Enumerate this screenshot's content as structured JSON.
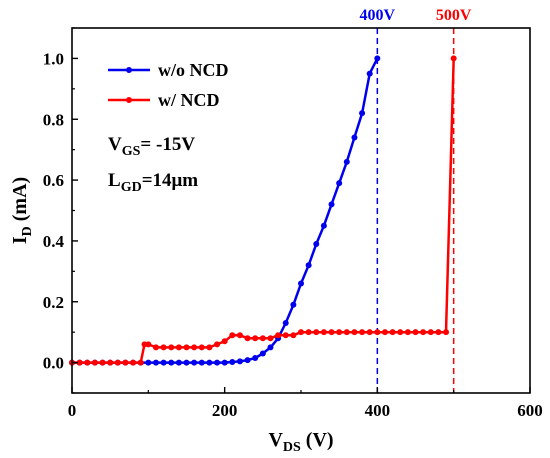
{
  "chart_data": {
    "type": "line",
    "title": "",
    "xlabel": {
      "main": "V",
      "sub": "DS",
      "unit": " (V)"
    },
    "ylabel": {
      "main": "I",
      "sub": "D",
      "unit": " (mA)"
    },
    "xlim": [
      0,
      600
    ],
    "ylim": [
      -0.1,
      1.1
    ],
    "xticks": [
      0,
      200,
      400,
      600
    ],
    "yticks": [
      0.0,
      0.2,
      0.4,
      0.6,
      0.8,
      1.0
    ],
    "ytick_labels": [
      "0.0",
      "0.2",
      "0.4",
      "0.6",
      "0.8",
      "1.0"
    ],
    "grid": false,
    "legend_position": "top-left",
    "series": [
      {
        "name": "w/o NCD",
        "color": "#0000ee",
        "x": [
          0,
          10,
          20,
          30,
          40,
          50,
          60,
          70,
          80,
          90,
          100,
          110,
          120,
          130,
          140,
          150,
          160,
          170,
          180,
          190,
          200,
          210,
          220,
          230,
          240,
          250,
          260,
          270,
          280,
          290,
          300,
          310,
          320,
          330,
          340,
          350,
          360,
          370,
          380,
          390,
          400
        ],
        "y": [
          0,
          0,
          0,
          0,
          0,
          0,
          0,
          0,
          0,
          0,
          0,
          0,
          0,
          0,
          0,
          0,
          0,
          0,
          0,
          0,
          0,
          0.002,
          0.004,
          0.008,
          0.015,
          0.03,
          0.05,
          0.08,
          0.13,
          0.19,
          0.26,
          0.32,
          0.39,
          0.45,
          0.52,
          0.59,
          0.66,
          0.74,
          0.82,
          0.95,
          1.0
        ]
      },
      {
        "name": "w/ NCD",
        "color": "#ff0000",
        "x": [
          0,
          10,
          20,
          30,
          40,
          50,
          60,
          70,
          80,
          90,
          95,
          100,
          110,
          120,
          130,
          140,
          150,
          160,
          170,
          180,
          190,
          200,
          210,
          220,
          230,
          240,
          250,
          260,
          270,
          280,
          290,
          300,
          310,
          320,
          330,
          340,
          350,
          360,
          370,
          380,
          390,
          400,
          410,
          420,
          430,
          440,
          450,
          460,
          470,
          480,
          490,
          500
        ],
        "y": [
          0,
          0,
          0,
          0,
          0,
          0,
          0,
          0,
          0,
          0,
          0.06,
          0.06,
          0.05,
          0.05,
          0.05,
          0.05,
          0.05,
          0.05,
          0.05,
          0.05,
          0.06,
          0.07,
          0.09,
          0.09,
          0.08,
          0.08,
          0.08,
          0.08,
          0.09,
          0.09,
          0.09,
          0.1,
          0.1,
          0.1,
          0.1,
          0.1,
          0.1,
          0.1,
          0.1,
          0.1,
          0.1,
          0.1,
          0.1,
          0.1,
          0.1,
          0.1,
          0.1,
          0.1,
          0.1,
          0.1,
          0.1,
          1.0
        ]
      }
    ],
    "vlines": [
      {
        "x": 400,
        "label": "400V",
        "color": "#0000ee"
      },
      {
        "x": 500,
        "label": "500V",
        "color": "#ff0000"
      }
    ],
    "annotations": [
      {
        "main": "V",
        "sub": "GS",
        "rest": "= -15V"
      },
      {
        "main": "L",
        "sub": "GD",
        "rest": "=14μm"
      }
    ]
  }
}
